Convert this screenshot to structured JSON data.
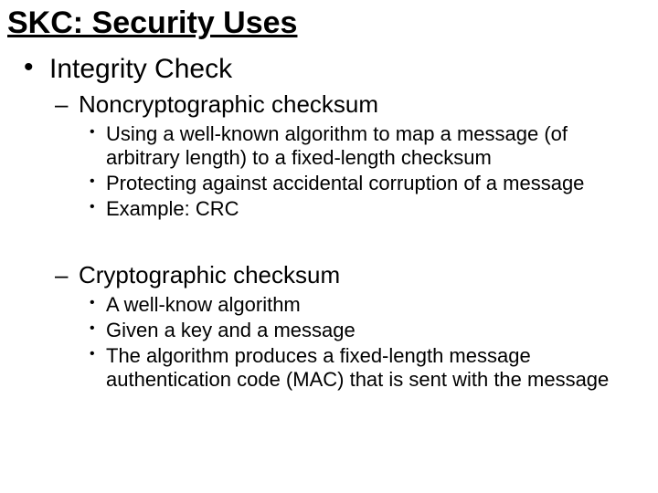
{
  "title": "SKC: Security Uses",
  "title_font_family": "Comic Sans MS",
  "title_fontsize": 34,
  "title_underline": true,
  "background_color": "#ffffff",
  "text_color": "#000000",
  "body_font_family": "Arial",
  "levels": {
    "l1": {
      "fontsize": 30,
      "bullet": "•"
    },
    "l2": {
      "fontsize": 26,
      "bullet": "–"
    },
    "l3": {
      "fontsize": 22,
      "bullet": "•"
    }
  },
  "l1_item": "Integrity Check",
  "section_a": {
    "heading": "Noncryptographic checksum",
    "points": [
      "Using a well-known algorithm to map a message (of arbitrary length) to a fixed-length checksum",
      "Protecting against accidental corruption of a message",
      "Example: CRC"
    ]
  },
  "section_b": {
    "heading": "Cryptographic checksum",
    "points": [
      "A well-know algorithm",
      "Given a key and a message",
      "The algorithm produces a fixed-length message authentication code (MAC) that is sent with the message"
    ]
  }
}
